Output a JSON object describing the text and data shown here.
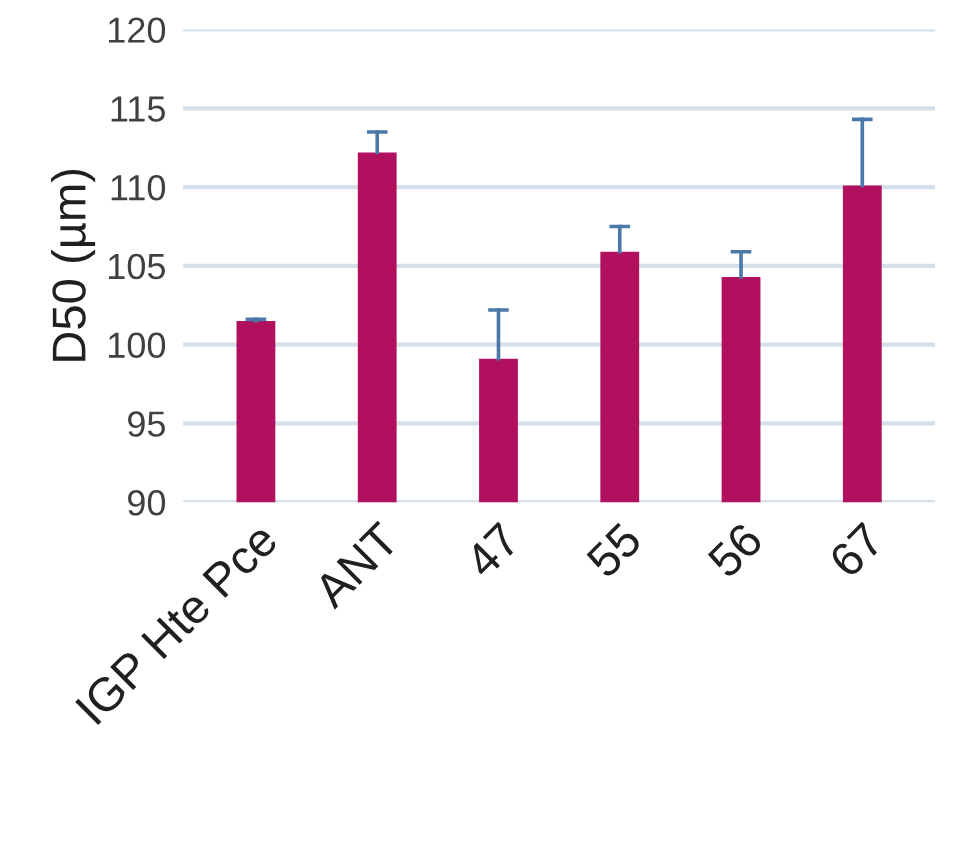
{
  "chart_data": {
    "type": "bar",
    "ylabel": "D50 (µm)",
    "categories": [
      "IGP Hte Pce",
      "ANT",
      "47",
      "55",
      "56",
      "67"
    ],
    "values": [
      101.5,
      112.2,
      99.1,
      105.9,
      104.3,
      110.1
    ],
    "errors": [
      [
        101.5,
        101.6
      ],
      [
        112.2,
        113.5
      ],
      [
        99.1,
        102.2
      ],
      [
        105.9,
        107.5
      ],
      [
        104.3,
        105.9
      ],
      [
        110.1,
        114.3
      ]
    ],
    "color": "#b0105e",
    "ylim": [
      90,
      120
    ],
    "yticks": [
      90,
      95,
      100,
      105,
      110,
      115,
      120
    ],
    "grid": "y",
    "legend": false
  }
}
